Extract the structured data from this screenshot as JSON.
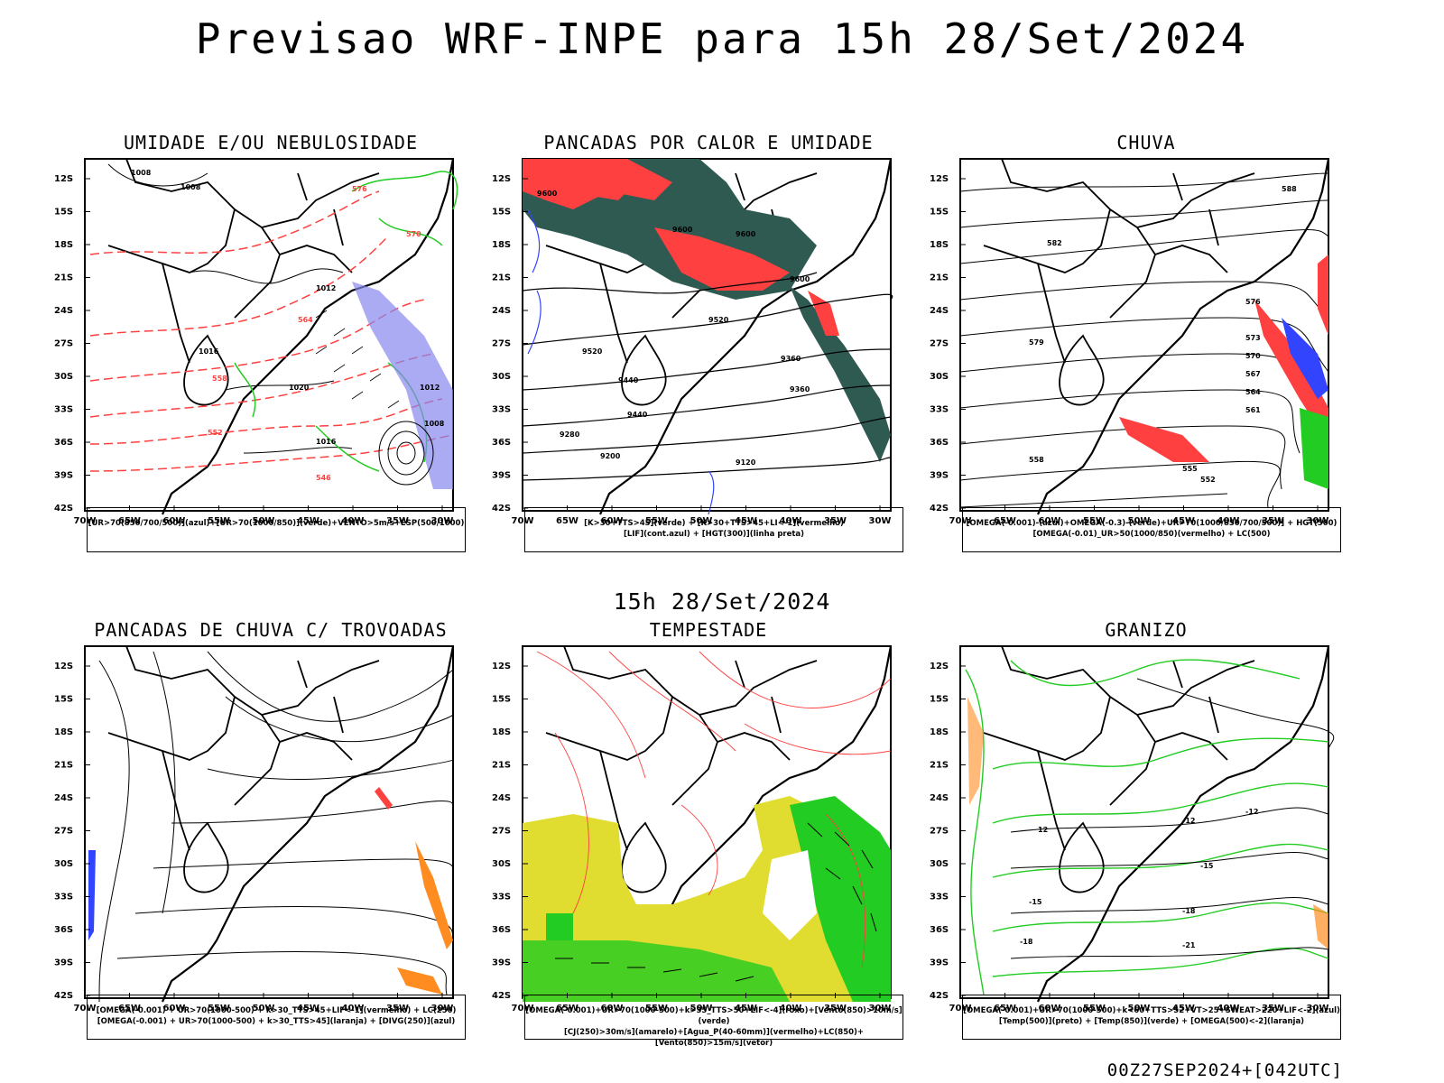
{
  "title": "Previsao WRF-INPE  para 15h 28/Set/2024",
  "subtitle": "15h 28/Set/2024",
  "footer": "00Z27SEP2024+[042UTC]",
  "axes": {
    "lat": [
      "12S",
      "15S",
      "18S",
      "21S",
      "24S",
      "27S",
      "30S",
      "33S",
      "36S",
      "39S",
      "42S"
    ],
    "lon": [
      "70W",
      "65W",
      "60W",
      "55W",
      "50W",
      "45W",
      "40W",
      "35W",
      "30W"
    ]
  },
  "panels": [
    {
      "id": "umidade",
      "title": "UMIDADE E/OU NEBULOSIDADE",
      "legend": [
        "[UR>70(850/700/500)](azul)+[UR>70(1000/850)](verde)+VENTO>5m/s+ESP(500/1000)"
      ],
      "labels": [
        "1008",
        "1008",
        "1012",
        "1016",
        "1020",
        "1016",
        "1012",
        "1008",
        "576",
        "570",
        "564",
        "558",
        "552",
        "546"
      ]
    },
    {
      "id": "pancadas-calor",
      "title": "PANCADAS POR CALOR E UMIDADE",
      "legend": [
        "[K>30+TTS>45](verde) + [K>30+TTS>45+LI<-1](vermelho)",
        "[LIF](cont.azul) + [HGT(300)](linha preta)"
      ],
      "labels": [
        "9600",
        "9600",
        "9600",
        "9520",
        "9520",
        "9440",
        "9440",
        "9360",
        "9360",
        "9280",
        "9200",
        "9120",
        "9600"
      ]
    },
    {
      "id": "chuva",
      "title": "CHUVA",
      "legend": [
        "[OMEGA(-0.001)-(azul)+OMEGA(-0.3)-(verde)+UR>70(1000/850/700/500)] + HGT(500)",
        "[OMEGA(-0.01)_UR>50(1000/850)(vermelho) + LC(500)"
      ],
      "labels": [
        "588",
        "582",
        "579",
        "576",
        "573",
        "570",
        "567",
        "564",
        "561",
        "558",
        "555",
        "552"
      ]
    },
    {
      "id": "trovoadas",
      "title": "PANCADAS DE CHUVA C/ TROVOADAS",
      "legend": [
        "[OMEGA(-0.001) + UR>70(1000-500) + k>30_TTS>45+LIF<-1](vermelho) + LC(250)",
        "[OMEGA(-0.001) + UR>70(1000-500) + k>30_TTS>45](laranja) + [DIVG(250)](azul)"
      ],
      "labels": []
    },
    {
      "id": "tempestade",
      "title": "TEMPESTADE",
      "legend": [
        "[OMEGA(-0.001)+UR>70(1000-500)+k>35_TTS>50+LIF<-4](roxo)+[Vento(850)>10m/s](verde)",
        "[CJ(250)>30m/s](amarelo)+[Agua_P(40-60mm)](vermelho)+LC(850)+[Vento(850)>15m/s](vetor)"
      ],
      "labels": []
    },
    {
      "id": "granizo",
      "title": "GRANIZO",
      "legend": [
        "[OMEGA(-0.001)+UR>70(1000-500)+k<60+TTS>52+VT>25+SWEAT>220+LIF<-2](azul)",
        "[Temp(500)](preto) + [Temp(850)](verde) + [OMEGA(500)<-2](laranja)"
      ],
      "labels": [
        "-12",
        "-12",
        "-15",
        "-18",
        "-21",
        "-18",
        "-15",
        "12"
      ]
    }
  ],
  "colors": {
    "red": "#ff4040",
    "green": "#22cc22",
    "blue": "#3344ff",
    "purple": "#8888ee",
    "darkgreen": "#2f5a52",
    "yellow": "#e0dc30",
    "orange": "#ff8c20"
  }
}
